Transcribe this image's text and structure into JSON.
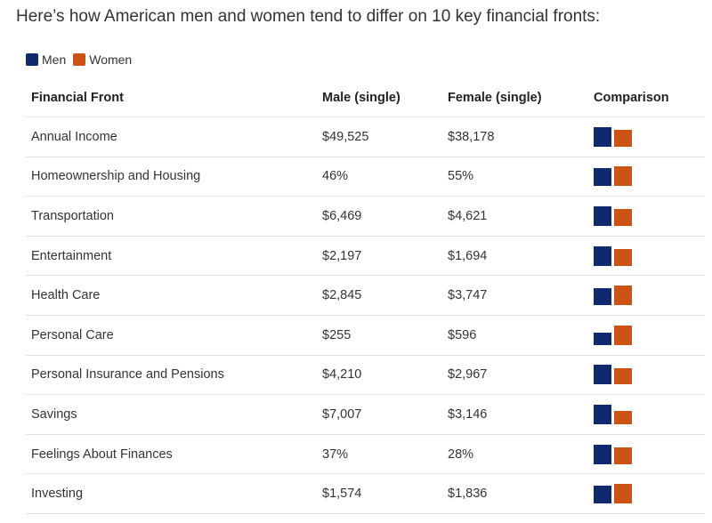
{
  "heading": "Here’s how American men and women tend to differ on 10 key financial fronts:",
  "legend": [
    {
      "label": "Men",
      "color": "#0d2a6e"
    },
    {
      "label": "Women",
      "color": "#cc5314"
    }
  ],
  "colors": {
    "men": "#0d2a6e",
    "women": "#cc5314"
  },
  "chart_data": {
    "type": "table",
    "columns": [
      "Financial Front",
      "Male (single)",
      "Female (single)",
      "Comparison"
    ],
    "rows": [
      {
        "front": "Annual Income",
        "male": "$49,525",
        "female": "$38,178",
        "male_value": 49525,
        "female_value": 38178
      },
      {
        "front": "Homeownership and Housing",
        "male": "46%",
        "female": "55%",
        "male_value": 46,
        "female_value": 55
      },
      {
        "front": "Transportation",
        "male": "$6,469",
        "female": "$4,621",
        "male_value": 6469,
        "female_value": 4621
      },
      {
        "front": "Entertainment",
        "male": "$2,197",
        "female": "$1,694",
        "male_value": 2197,
        "female_value": 1694
      },
      {
        "front": "Health Care",
        "male": "$2,845",
        "female": "$3,747",
        "male_value": 2845,
        "female_value": 3747
      },
      {
        "front": "Personal Care",
        "male": "$255",
        "female": "$596",
        "male_value": 255,
        "female_value": 596
      },
      {
        "front": "Personal Insurance and Pensions",
        "male": "$4,210",
        "female": "$2,967",
        "male_value": 4210,
        "female_value": 2967
      },
      {
        "front": "Savings",
        "male": "$7,007",
        "female": "$3,146",
        "male_value": 7007,
        "female_value": 3146
      },
      {
        "front": "Feelings About Finances",
        "male": "37%",
        "female": "28%",
        "male_value": 37,
        "female_value": 28
      },
      {
        "front": "Investing",
        "male": "$1,574",
        "female": "$1,836",
        "male_value": 1574,
        "female_value": 1836
      }
    ]
  }
}
